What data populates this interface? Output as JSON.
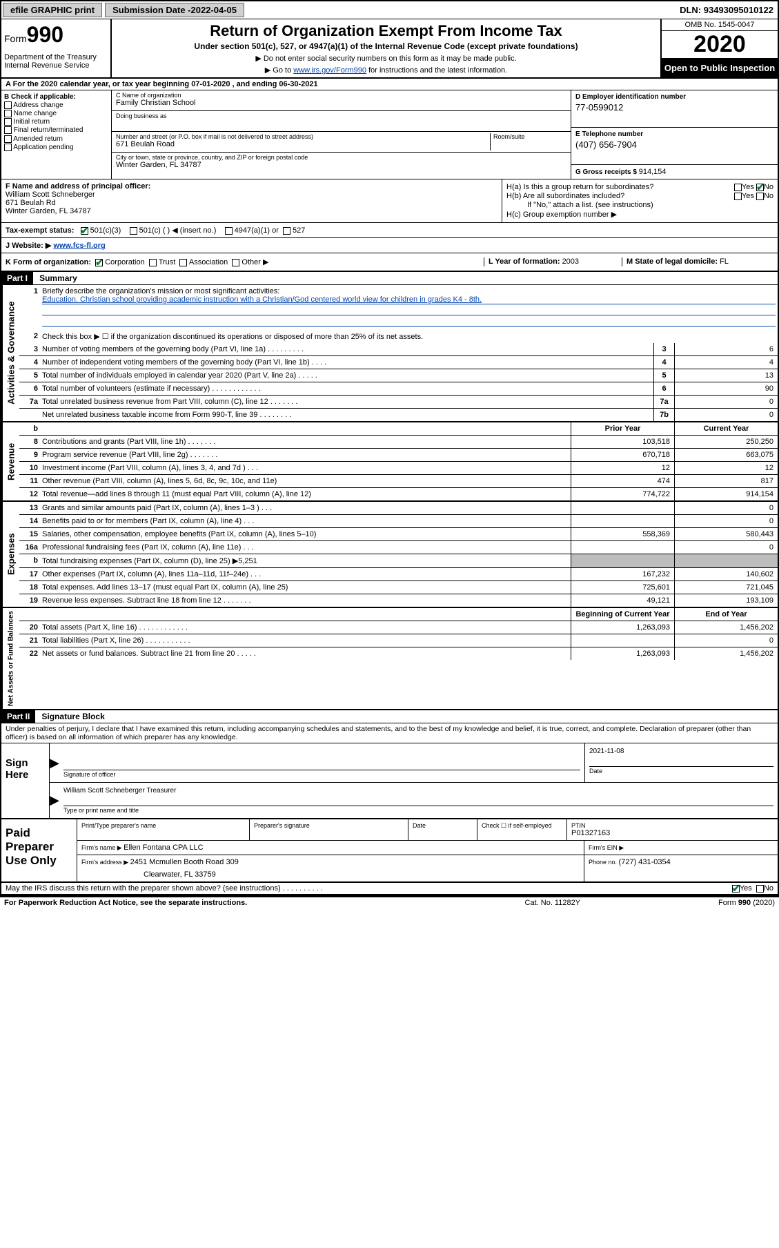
{
  "topbar": {
    "efile": "efile GRAPHIC print",
    "subdate_label": "Submission Date - ",
    "subdate": "2022-04-05",
    "dln_label": "DLN: ",
    "dln": "93493095010122"
  },
  "header": {
    "form_small": "Form",
    "form_big": "990",
    "dept": "Department of the Treasury\nInternal Revenue Service",
    "title": "Return of Organization Exempt From Income Tax",
    "sub": "Under section 501(c), 527, or 4947(a)(1) of the Internal Revenue Code (except private foundations)",
    "note1": "▶ Do not enter social security numbers on this form as it may be made public.",
    "note2_pre": "▶ Go to ",
    "note2_link": "www.irs.gov/Form990",
    "note2_post": " for instructions and the latest information.",
    "omb": "OMB No. 1545-0047",
    "year": "2020",
    "inspect": "Open to Public Inspection"
  },
  "row_a": "A For the 2020 calendar year, or tax year beginning 07-01-2020   , and ending 06-30-2021",
  "col_b": {
    "hdr": "B Check if applicable:",
    "opts": [
      "Address change",
      "Name change",
      "Initial return",
      "Final return/terminated",
      "Amended return",
      "Application pending"
    ]
  },
  "col_c": {
    "name_lbl": "C Name of organization",
    "name": "Family Christian School",
    "dba_lbl": "Doing business as",
    "dba": "",
    "street_lbl": "Number and street (or P.O. box if mail is not delivered to street address)",
    "street": "671 Beulah Road",
    "room_lbl": "Room/suite",
    "city_lbl": "City or town, state or province, country, and ZIP or foreign postal code",
    "city": "Winter Garden, FL  34787"
  },
  "col_de": {
    "d_lbl": "D Employer identification number",
    "d_val": "77-0599012",
    "e_lbl": "E Telephone number",
    "e_val": "(407) 656-7904",
    "g_lbl": "G Gross receipts $ ",
    "g_val": "914,154"
  },
  "col_f": {
    "lbl": "F Name and address of principal officer:",
    "name": "William Scott Schneberger",
    "addr1": "671 Beulah Rd",
    "addr2": "Winter Garden, FL  34787"
  },
  "col_h": {
    "a_lbl": "H(a)  Is this a group return for subordinates?",
    "a_yes": "Yes",
    "a_no": "No",
    "b_lbl": "H(b)  Are all subordinates included?",
    "b_yes": "Yes",
    "b_no": "No",
    "b_note": "If \"No,\" attach a list. (see instructions)",
    "c_lbl": "H(c)  Group exemption number ▶"
  },
  "row_i": {
    "lbl": "Tax-exempt status:",
    "o1": "501(c)(3)",
    "o2": "501(c) (   ) ◀ (insert no.)",
    "o3": "4947(a)(1) or",
    "o4": "527"
  },
  "row_j": {
    "lbl": "J  Website: ▶ ",
    "url": "www.fcs-fl.org"
  },
  "row_k": {
    "k_lbl": "K Form of organization:",
    "k_opts": [
      "Corporation",
      "Trust",
      "Association",
      "Other ▶"
    ],
    "l_lbl": "L Year of formation: ",
    "l_val": "2003",
    "m_lbl": "M State of legal domicile: ",
    "m_val": "FL"
  },
  "part1": {
    "hdr": "Part I",
    "title": "Summary"
  },
  "gov": {
    "label": "Activities & Governance",
    "l1_lbl": "Briefly describe the organization's mission or most significant activities:",
    "l1_txt": "Education. Christian school providing academic instruction with a Christian/God centered world view for children in grades K4 - 8th.",
    "l2": "Check this box ▶ ☐  if the organization discontinued its operations or disposed of more than 25% of its net assets.",
    "rows": [
      {
        "n": "3",
        "t": "Number of voting members of the governing body (Part VI, line 1a)  .   .   .   .   .   .   .   .   .",
        "k": "3",
        "v": "6"
      },
      {
        "n": "4",
        "t": "Number of independent voting members of the governing body (Part VI, line 1b)   .   .   .   .",
        "k": "4",
        "v": "4"
      },
      {
        "n": "5",
        "t": "Total number of individuals employed in calendar year 2020 (Part V, line 2a)   .   .   .   .   .",
        "k": "5",
        "v": "13"
      },
      {
        "n": "6",
        "t": "Total number of volunteers (estimate if necessary)   .   .   .   .   .   .   .   .   .   .   .   .",
        "k": "6",
        "v": "90"
      },
      {
        "n": "7a",
        "t": "Total unrelated business revenue from Part VIII, column (C), line 12   .   .   .   .   .   .   .",
        "k": "7a",
        "v": "0"
      },
      {
        "n": "",
        "t": "Net unrelated business taxable income from Form 990-T, line 39   .   .   .   .   .   .   .   .",
        "k": "7b",
        "v": "0"
      }
    ]
  },
  "rev": {
    "label": "Revenue",
    "hdr_b": "b",
    "hdr_prior": "Prior Year",
    "hdr_curr": "Current Year",
    "rows": [
      {
        "n": "8",
        "t": "Contributions and grants (Part VIII, line 1h)   .   .   .   .   .   .   .",
        "p": "103,518",
        "c": "250,250"
      },
      {
        "n": "9",
        "t": "Program service revenue (Part VIII, line 2g)   .   .   .   .   .   .   .",
        "p": "670,718",
        "c": "663,075"
      },
      {
        "n": "10",
        "t": "Investment income (Part VIII, column (A), lines 3, 4, and 7d )   .   .   .",
        "p": "12",
        "c": "12"
      },
      {
        "n": "11",
        "t": "Other revenue (Part VIII, column (A), lines 5, 6d, 8c, 9c, 10c, and 11e)",
        "p": "474",
        "c": "817"
      },
      {
        "n": "12",
        "t": "Total revenue—add lines 8 through 11 (must equal Part VIII, column (A), line 12)",
        "p": "774,722",
        "c": "914,154"
      }
    ]
  },
  "exp": {
    "label": "Expenses",
    "rows": [
      {
        "n": "13",
        "t": "Grants and similar amounts paid (Part IX, column (A), lines 1–3 )   .   .   .",
        "p": "",
        "c": "0"
      },
      {
        "n": "14",
        "t": "Benefits paid to or for members (Part IX, column (A), line 4)   .   .   .",
        "p": "",
        "c": "0"
      },
      {
        "n": "15",
        "t": "Salaries, other compensation, employee benefits (Part IX, column (A), lines 5–10)",
        "p": "558,369",
        "c": "580,443"
      },
      {
        "n": "16a",
        "t": "Professional fundraising fees (Part IX, column (A), line 11e)   .   .   .",
        "p": "",
        "c": "0"
      },
      {
        "n": "b",
        "t": "Total fundraising expenses (Part IX, column (D), line 25) ▶5,251",
        "p": "GRAY",
        "c": "GRAY"
      },
      {
        "n": "17",
        "t": "Other expenses (Part IX, column (A), lines 11a–11d, 11f–24e)   .   .   .",
        "p": "167,232",
        "c": "140,602"
      },
      {
        "n": "18",
        "t": "Total expenses. Add lines 13–17 (must equal Part IX, column (A), line 25)",
        "p": "725,601",
        "c": "721,045"
      },
      {
        "n": "19",
        "t": "Revenue less expenses. Subtract line 18 from line 12   .   .   .   .   .   .   .",
        "p": "49,121",
        "c": "193,109"
      }
    ]
  },
  "net": {
    "label": "Net Assets or Fund Balances",
    "hdr_prior": "Beginning of Current Year",
    "hdr_curr": "End of Year",
    "rows": [
      {
        "n": "20",
        "t": "Total assets (Part X, line 16)   .   .   .   .   .   .   .   .   .   .   .   .",
        "p": "1,263,093",
        "c": "1,456,202"
      },
      {
        "n": "21",
        "t": "Total liabilities (Part X, line 26)   .   .   .   .   .   .   .   .   .   .   .",
        "p": "",
        "c": "0"
      },
      {
        "n": "22",
        "t": "Net assets or fund balances. Subtract line 21 from line 20   .   .   .   .   .",
        "p": "1,263,093",
        "c": "1,456,202"
      }
    ]
  },
  "part2": {
    "hdr": "Part II",
    "title": "Signature Block"
  },
  "decl": "Under penalties of perjury, I declare that I have examined this return, including accompanying schedules and statements, and to the best of my knowledge and belief, it is true, correct, and complete. Declaration of preparer (other than officer) is based on all information of which preparer has any knowledge.",
  "sign": {
    "label": "Sign Here",
    "sig_lbl": "Signature of officer",
    "date_val": "2021-11-08",
    "date_lbl": "Date",
    "name": "William Scott Schneberger  Treasurer",
    "name_lbl": "Type or print name and title"
  },
  "paid": {
    "label": "Paid Preparer Use Only",
    "r1": {
      "c1_lbl": "Print/Type preparer's name",
      "c1": "",
      "c2_lbl": "Preparer's signature",
      "c2": "",
      "c3_lbl": "Date",
      "c3": "",
      "c4_lbl": "Check ☐ if self-employed",
      "c5_lbl": "PTIN",
      "c5": "P01327163"
    },
    "r2": {
      "firm_lbl": "Firm's name    ▶ ",
      "firm": "Ellen Fontana CPA LLC",
      "ein_lbl": "Firm's EIN ▶"
    },
    "r3": {
      "addr_lbl": "Firm's address ▶ ",
      "addr1": "2451 Mcmullen Booth Road 309",
      "addr2": "Clearwater, FL  33759",
      "phone_lbl": "Phone no. ",
      "phone": "(727) 431-0354"
    }
  },
  "bottom": {
    "q": "May the IRS discuss this return with the preparer shown above? (see instructions)   .   .   .   .   .   .   .   .   .   .",
    "yes": "Yes",
    "no": "No"
  },
  "footer": {
    "l": "For Paperwork Reduction Act Notice, see the separate instructions.",
    "m": "Cat. No. 11282Y",
    "r": "Form 990 (2020)"
  }
}
